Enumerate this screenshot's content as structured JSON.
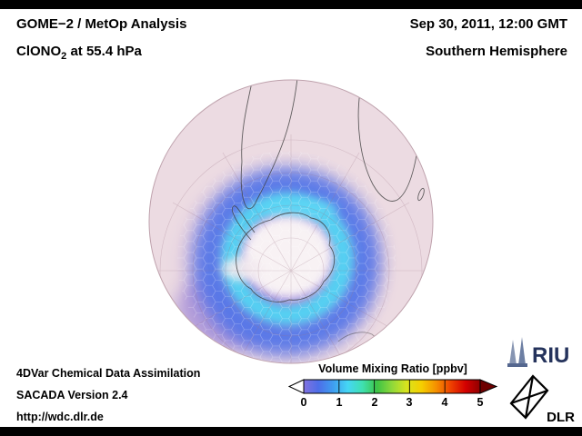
{
  "header": {
    "analysis_title": "GOME−2 / MetOp Analysis",
    "species": "ClONO",
    "species_sub": "2",
    "level": " at 55.4 hPa",
    "datetime": "Sep 30, 2011, 12:00 GMT",
    "hemisphere": "Southern Hemisphere"
  },
  "footer": {
    "line1": "4DVar Chemical Data Assimilation",
    "line2": "SACADA Version 2.4",
    "line3": "http://wdc.dlr.de"
  },
  "colorbar": {
    "title": "Volume Mixing Ratio [ppbv]",
    "ticks": [
      "0",
      "1",
      "2",
      "3",
      "4",
      "5"
    ],
    "gradient_colors": [
      "#8272e0",
      "#4d6ee8",
      "#3f9ef0",
      "#45d6f4",
      "#3fe0b0",
      "#3ec445",
      "#8fd83a",
      "#d8e41e",
      "#f5cf00",
      "#f59000",
      "#ee4200",
      "#d40000",
      "#8f0000"
    ],
    "under_range_color": "#ffffff",
    "over_range_color": "#6e0000"
  },
  "logos": {
    "riu": "RIU",
    "dlr": "DLR"
  }
}
